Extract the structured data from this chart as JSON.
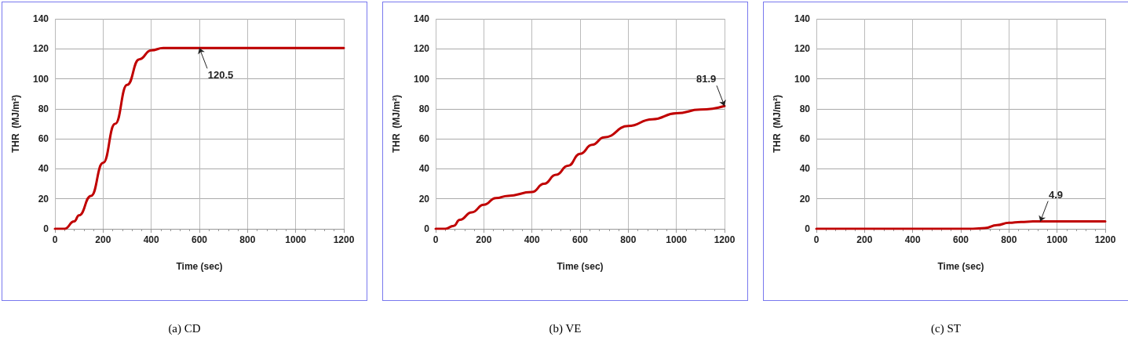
{
  "chart_data": [
    {
      "type": "line",
      "title": "(a) CD",
      "xlabel": "Time (sec)",
      "ylabel": "THR  (MJ/m²)",
      "xlim": [
        0,
        1200
      ],
      "xticks": [
        0,
        200,
        400,
        600,
        800,
        1000,
        1200
      ],
      "ylim": [
        0,
        140
      ],
      "yticks": [
        0,
        20,
        40,
        60,
        80,
        100,
        120,
        140
      ],
      "grid": true,
      "marker": "none",
      "line_style": "solid",
      "annotations": [
        {
          "text": "120.5",
          "x": 600,
          "y": 120.5
        }
      ],
      "series": [
        {
          "color": "#c00000",
          "x": [
            0,
            40,
            80,
            100,
            150,
            200,
            250,
            300,
            350,
            400,
            450,
            500,
            1200
          ],
          "values": [
            0,
            0,
            5,
            9,
            22,
            44,
            70,
            96,
            113,
            119,
            120.5,
            120.5,
            120.5
          ]
        }
      ]
    },
    {
      "type": "line",
      "title": "(b) VE",
      "xlabel": "Time (sec)",
      "ylabel": "THR  (MJ/m²)",
      "xlim": [
        0,
        1200
      ],
      "xticks": [
        0,
        200,
        400,
        600,
        800,
        1000,
        1200
      ],
      "ylim": [
        0,
        140
      ],
      "yticks": [
        0,
        20,
        40,
        60,
        80,
        100,
        120,
        140
      ],
      "grid": true,
      "marker": "none",
      "line_style": "solid",
      "annotations": [
        {
          "text": "81.9",
          "x": 1200,
          "y": 81.9
        }
      ],
      "series": [
        {
          "color": "#c00000",
          "x": [
            0,
            40,
            75,
            100,
            150,
            200,
            250,
            300,
            400,
            450,
            500,
            550,
            600,
            650,
            700,
            800,
            900,
            1000,
            1100,
            1200
          ],
          "values": [
            0,
            0,
            2,
            6,
            11,
            16,
            20.5,
            22,
            24.5,
            30,
            36,
            42,
            50,
            56,
            61,
            68.5,
            73,
            77,
            79.5,
            81.9
          ]
        }
      ]
    },
    {
      "type": "line",
      "title": "(c) ST",
      "xlabel": "Time (sec)",
      "ylabel": "THR  (MJ/m²)",
      "xlim": [
        0,
        1200
      ],
      "xticks": [
        0,
        200,
        400,
        600,
        800,
        1000,
        1200
      ],
      "ylim": [
        0,
        140
      ],
      "yticks": [
        0,
        20,
        40,
        60,
        80,
        100,
        120,
        140
      ],
      "grid": true,
      "marker": "none",
      "line_style": "solid",
      "annotations": [
        {
          "text": "4.9",
          "x": 930,
          "y": 4.9
        }
      ],
      "series": [
        {
          "color": "#c00000",
          "x": [
            0,
            650,
            700,
            750,
            800,
            850,
            900,
            1000,
            1200
          ],
          "values": [
            0,
            0,
            0.5,
            2.5,
            4,
            4.6,
            4.9,
            4.9,
            4.9
          ]
        }
      ]
    }
  ]
}
